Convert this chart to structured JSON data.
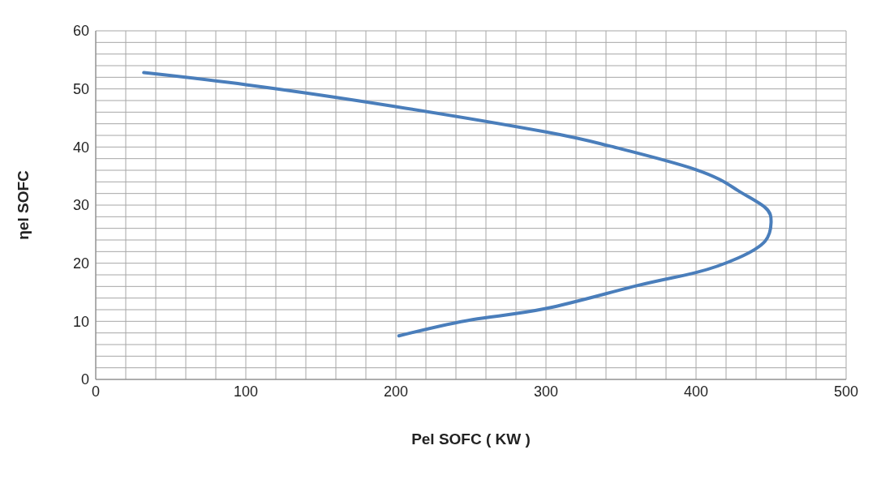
{
  "chart_data": {
    "type": "line",
    "xlabel": "Pel  SOFC ( KW )",
    "ylabel": "ηel SOFC",
    "x": [
      32,
      101,
      199,
      300,
      342,
      400,
      428,
      446,
      450,
      446,
      428,
      400,
      360,
      300,
      251,
      202
    ],
    "series": [
      {
        "color": "#4a7ebb",
        "values": [
          52.8,
          50.7,
          47,
          42.6,
          40.2,
          36.1,
          32.5,
          29.6,
          27,
          23.8,
          20.9,
          18.4,
          16.1,
          12.2,
          10.3,
          7.5
        ]
      }
    ],
    "xlim": [
      0,
      500
    ],
    "xticks": [
      0,
      {
        "value": 20,
        "label": null
      },
      {
        "value": 40,
        "label": null
      },
      {
        "value": 60,
        "label": null
      },
      {
        "value": 80,
        "label": null
      },
      100,
      {
        "value": 120,
        "label": null
      },
      {
        "value": 140,
        "label": null
      },
      {
        "value": 160,
        "label": null
      },
      {
        "value": 180,
        "label": null
      },
      200,
      {
        "value": 220,
        "label": null
      },
      {
        "value": 240,
        "label": null
      },
      {
        "value": 260,
        "label": null
      },
      {
        "value": 280,
        "label": null
      },
      300,
      {
        "value": 320,
        "label": null
      },
      {
        "value": 340,
        "label": null
      },
      {
        "value": 360,
        "label": null
      },
      {
        "value": 380,
        "label": null
      },
      400,
      {
        "value": 420,
        "label": null
      },
      {
        "value": 440,
        "label": null
      },
      {
        "value": 460,
        "label": null
      },
      {
        "value": 480,
        "label": null
      },
      500
    ],
    "ylim": [
      0,
      60
    ],
    "yticks": [
      0,
      {
        "value": 2,
        "label": null
      },
      {
        "value": 4,
        "label": null
      },
      {
        "value": 6,
        "label": null
      },
      {
        "value": 8,
        "label": null
      },
      10,
      {
        "value": 12,
        "label": null
      },
      {
        "value": 14,
        "label": null
      },
      {
        "value": 16,
        "label": null
      },
      {
        "value": 18,
        "label": null
      },
      20,
      {
        "value": 22,
        "label": null
      },
      {
        "value": 24,
        "label": null
      },
      {
        "value": 26,
        "label": null
      },
      {
        "value": 28,
        "label": null
      },
      30,
      {
        "value": 32,
        "label": null
      },
      {
        "value": 34,
        "label": null
      },
      {
        "value": 36,
        "label": null
      },
      {
        "value": 38,
        "label": null
      },
      40,
      {
        "value": 42,
        "label": null
      },
      {
        "value": 44,
        "label": null
      },
      {
        "value": 46,
        "label": null
      },
      {
        "value": 48,
        "label": null
      },
      50,
      {
        "value": 52,
        "label": null
      },
      {
        "value": 54,
        "label": null
      },
      {
        "value": 56,
        "label": null
      },
      {
        "value": 58,
        "label": null
      },
      60
    ],
    "grid": true,
    "marker": "none",
    "line_style": "solid"
  }
}
